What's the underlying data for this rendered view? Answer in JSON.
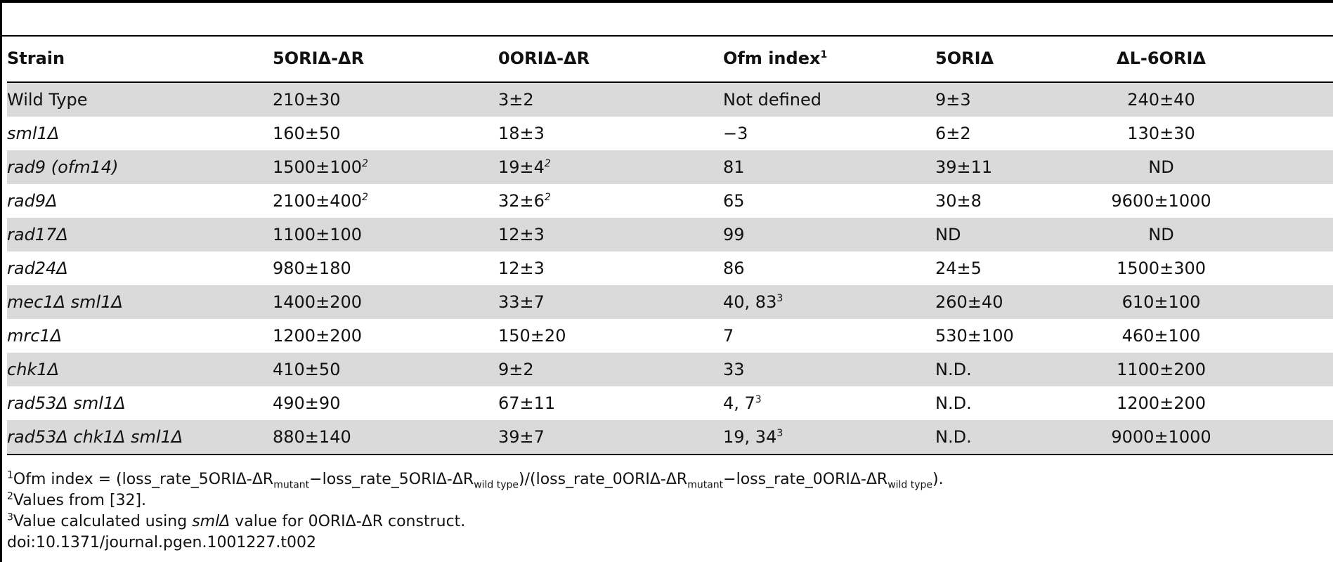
{
  "table": {
    "headers": [
      "Strain",
      "5ORIΔ-ΔR",
      "0ORIΔ-ΔR",
      "Ofm index",
      "5ORIΔ",
      "ΔL-6ORIΔ"
    ],
    "header_sup": {
      "ofm": "1"
    },
    "rows": [
      {
        "strain": "Wild Type",
        "italic": false,
        "c1": "210±30",
        "c1_sup": "",
        "c2": "3±2",
        "c2_sup": "",
        "ofm": "Not defined",
        "ofm_sup": "",
        "c4": "9±3",
        "c5": "240±40"
      },
      {
        "strain": "sml1Δ",
        "italic": true,
        "c1": "160±50",
        "c1_sup": "",
        "c2": "18±3",
        "c2_sup": "",
        "ofm": "−3",
        "ofm_sup": "",
        "c4": "6±2",
        "c5": "130±30"
      },
      {
        "strain": "rad9 (ofm14)",
        "italic": true,
        "c1": "1500±100",
        "c1_sup": "2",
        "c2": "19±4",
        "c2_sup": "2",
        "ofm": "81",
        "ofm_sup": "",
        "c4": "39±11",
        "c5": "ND"
      },
      {
        "strain": "rad9Δ",
        "italic": true,
        "c1": "2100±400",
        "c1_sup": "2",
        "c2": "32±6",
        "c2_sup": "2",
        "ofm": "65",
        "ofm_sup": "",
        "c4": "30±8",
        "c5": "9600±1000"
      },
      {
        "strain": "rad17Δ",
        "italic": true,
        "c1": "1100±100",
        "c1_sup": "",
        "c2": "12±3",
        "c2_sup": "",
        "ofm": "99",
        "ofm_sup": "",
        "c4": "ND",
        "c5": "ND"
      },
      {
        "strain": "rad24Δ",
        "italic": true,
        "c1": "980±180",
        "c1_sup": "",
        "c2": "12±3",
        "c2_sup": "",
        "ofm": "86",
        "ofm_sup": "",
        "c4": "24±5",
        "c5": "1500±300"
      },
      {
        "strain": "mec1Δ sml1Δ",
        "italic": true,
        "c1": "1400±200",
        "c1_sup": "",
        "c2": "33±7",
        "c2_sup": "",
        "ofm": "40, 83",
        "ofm_sup": "3",
        "c4": "260±40",
        "c5": "610±100"
      },
      {
        "strain": "mrc1Δ",
        "italic": true,
        "c1": "1200±200",
        "c1_sup": "",
        "c2": "150±20",
        "c2_sup": "",
        "ofm": "7",
        "ofm_sup": "",
        "c4": "530±100",
        "c5": "460±100"
      },
      {
        "strain": "chk1Δ",
        "italic": true,
        "c1": "410±50",
        "c1_sup": "",
        "c2": "9±2",
        "c2_sup": "",
        "ofm": "33",
        "ofm_sup": "",
        "c4": "N.D.",
        "c5": "1100±200"
      },
      {
        "strain": "rad53Δ sml1Δ",
        "italic": true,
        "c1": "490±90",
        "c1_sup": "",
        "c2": "67±11",
        "c2_sup": "",
        "ofm": "4, 7",
        "ofm_sup": "3",
        "c4": "N.D.",
        "c5": "1200±200"
      },
      {
        "strain": "rad53Δ chk1Δ sml1Δ",
        "italic": true,
        "c1": "880±140",
        "c1_sup": "",
        "c2": "39±7",
        "c2_sup": "",
        "ofm": "19, 34",
        "ofm_sup": "3",
        "c4": "N.D.",
        "c5": "9000±1000"
      }
    ]
  },
  "footnotes": {
    "fn1": {
      "num": "1",
      "a": "Ofm index = (loss_rate_5ORIΔ-ΔR",
      "sub_a": "mutant",
      "b": "−loss_rate_5ORIΔ-ΔR",
      "sub_b": "wild type",
      "c": ")/(loss_rate_0ORIΔ-ΔR",
      "sub_c": "mutant",
      "d": "−loss_rate_0ORIΔ-ΔR",
      "sub_d": "wild type",
      "e": ")."
    },
    "fn2": {
      "num": "2",
      "text": "Values from [32]."
    },
    "fn3": {
      "num": "3",
      "pre": "Value calculated using ",
      "italic": "smlΔ",
      "post": " value for 0ORIΔ-ΔR construct."
    },
    "doi": "doi:10.1371/journal.pgen.1001227.t002"
  }
}
